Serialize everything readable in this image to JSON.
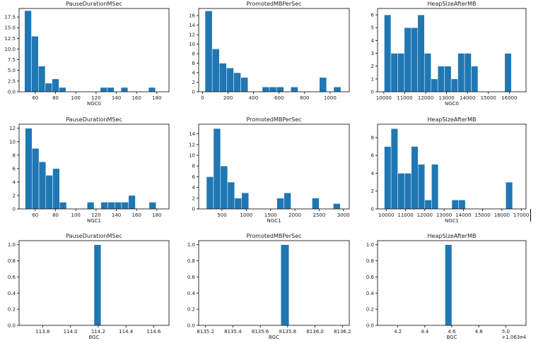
{
  "figure": {
    "bar_color": "#1f77b4",
    "edge_color": "#ffffff",
    "axis_color": "#000000"
  },
  "chart_data": [
    {
      "type": "bar",
      "title": "PauseDurationMSec",
      "xlabel": "NGC0",
      "xlim": [
        44,
        192
      ],
      "ylim": [
        0,
        19.5
      ],
      "xticks": [
        60,
        80,
        100,
        120,
        140,
        160,
        180
      ],
      "xtick_labels": [
        "60",
        "80",
        "100",
        "120",
        "140",
        "160",
        "180"
      ],
      "yticks": [
        0.0,
        2.5,
        5.0,
        7.5,
        10.0,
        12.5,
        15.0,
        17.5
      ],
      "ytick_labels": [
        "0.0",
        "2.5",
        "5.0",
        "7.5",
        "10.0",
        "12.5",
        "15.0",
        "17.5"
      ],
      "bin_edges": [
        49.4,
        56.2,
        63.0,
        69.8,
        76.6,
        83.4,
        90.2,
        97.0,
        103.8,
        110.6,
        117.4,
        124.2,
        131.0,
        137.8,
        144.6,
        151.4,
        158.2,
        165.0,
        171.8,
        178.6,
        185.4
      ],
      "values": [
        19,
        13,
        6,
        2,
        3,
        1,
        0,
        0,
        0,
        0,
        0,
        1,
        1,
        0,
        1,
        0,
        0,
        0,
        1,
        0
      ]
    },
    {
      "type": "bar",
      "title": "PromotedMBPerSec",
      "xlabel": "",
      "xlim": [
        -30,
        1150
      ],
      "ylim": [
        0,
        17.5
      ],
      "xticks": [
        0,
        200,
        400,
        600,
        800,
        1000
      ],
      "xtick_labels": [
        "0",
        "200",
        "400",
        "600",
        "800",
        "1000"
      ],
      "yticks": [
        0,
        2,
        4,
        6,
        8,
        10,
        12,
        14,
        16
      ],
      "ytick_labels": [
        "0",
        "2",
        "4",
        "6",
        "8",
        "10",
        "12",
        "14",
        "16"
      ],
      "bin_edges": [
        20,
        76,
        132,
        188,
        244,
        300,
        356,
        412,
        468,
        524,
        580,
        636,
        692,
        748,
        804,
        860,
        916,
        972,
        1028,
        1084,
        1140
      ],
      "values": [
        17,
        9,
        6,
        5,
        4,
        3,
        0,
        0,
        1,
        1,
        1,
        0,
        1,
        0,
        0,
        0,
        3,
        0,
        1,
        0
      ]
    },
    {
      "type": "bar",
      "title": "HeapSizeAfterMB",
      "xlabel": "NGC0",
      "xlim": [
        9700,
        16800
      ],
      "ylim": [
        0,
        6.5
      ],
      "xticks": [
        10000,
        11000,
        12000,
        13000,
        14000,
        15000,
        16000
      ],
      "xtick_labels": [
        "10000",
        "11000",
        "12000",
        "13000",
        "14000",
        "15000",
        "16000"
      ],
      "yticks": [
        0,
        1,
        2,
        3,
        4,
        5,
        6
      ],
      "ytick_labels": [
        "0",
        "1",
        "2",
        "3",
        "4",
        "5",
        "6"
      ],
      "bin_edges": [
        10020,
        10340,
        10660,
        10980,
        11300,
        11620,
        11940,
        12260,
        12580,
        12900,
        13220,
        13540,
        13860,
        14180,
        14500,
        14820,
        15140,
        15460,
        15780,
        16100,
        16420
      ],
      "values": [
        6,
        3,
        3,
        5,
        5,
        6,
        3,
        1,
        2,
        2,
        1,
        3,
        3,
        2,
        0,
        0,
        0,
        0,
        3,
        0
      ]
    },
    {
      "type": "bar",
      "title": "PauseDurationMSec",
      "xlabel": "NGC1",
      "xlim": [
        44,
        192
      ],
      "ylim": [
        0,
        12.6
      ],
      "xticks": [
        60,
        80,
        100,
        120,
        140,
        160,
        180
      ],
      "xtick_labels": [
        "60",
        "80",
        "100",
        "120",
        "140",
        "160",
        "180"
      ],
      "yticks": [
        0,
        2,
        4,
        6,
        8,
        10,
        12
      ],
      "ytick_labels": [
        "0",
        "2",
        "4",
        "6",
        "8",
        "10",
        "12"
      ],
      "bin_edges": [
        50.0,
        56.8,
        63.6,
        70.4,
        77.2,
        84.0,
        90.8,
        97.6,
        104.4,
        111.2,
        118.0,
        124.8,
        131.6,
        138.4,
        145.2,
        152.0,
        158.8,
        165.6,
        172.4,
        179.2,
        186.0
      ],
      "values": [
        12,
        9,
        7,
        5,
        6,
        1,
        0,
        0,
        0,
        1,
        0,
        1,
        1,
        1,
        1,
        2,
        0,
        0,
        1,
        0
      ]
    },
    {
      "type": "bar",
      "title": "PromotedMBPerSec",
      "xlabel": "NGC1",
      "xlim": [
        20,
        3120
      ],
      "ylim": [
        0,
        15.8
      ],
      "xticks": [
        500,
        1000,
        1500,
        2000,
        2500,
        3000
      ],
      "xtick_labels": [
        "500",
        "1000",
        "1500",
        "2000",
        "2500",
        "3000"
      ],
      "yticks": [
        0,
        2,
        4,
        6,
        8,
        10,
        12,
        14
      ],
      "ytick_labels": [
        "0",
        "2",
        "4",
        "6",
        "8",
        "10",
        "12",
        "14"
      ],
      "bin_edges": [
        180,
        325,
        470,
        615,
        760,
        905,
        1050,
        1195,
        1340,
        1485,
        1630,
        1775,
        1920,
        2065,
        2210,
        2355,
        2500,
        2645,
        2790,
        2935,
        3080
      ],
      "values": [
        6,
        15,
        8,
        5,
        2,
        3,
        0,
        0,
        0,
        0,
        2,
        3,
        0,
        0,
        0,
        2,
        0,
        0,
        1,
        0
      ]
    },
    {
      "type": "bar",
      "title": "HeapSizeAfterMB",
      "xlabel": "NGC1",
      "xlim": [
        9550,
        17250
      ],
      "ylim": [
        0,
        9.5
      ],
      "xticks": [
        10000,
        11000,
        12000,
        13000,
        14000,
        15000,
        16000,
        17000
      ],
      "xtick_labels": [
        "10000",
        "11000",
        "12000",
        "13000",
        "14000",
        "15000",
        "16000",
        "17000"
      ],
      "yticks": [
        0,
        2,
        4,
        6,
        8
      ],
      "ytick_labels": [
        "0",
        "2",
        "4",
        "6",
        "8"
      ],
      "bin_edges": [
        9900,
        10250,
        10600,
        10950,
        11300,
        11650,
        12000,
        12350,
        12700,
        13050,
        13400,
        13750,
        14100,
        14450,
        14800,
        15150,
        15500,
        15850,
        16200,
        16550,
        16900
      ],
      "values": [
        7,
        9,
        4,
        4,
        7,
        5,
        1,
        5,
        0,
        0,
        1,
        1,
        0,
        0,
        0,
        0,
        0,
        0,
        3,
        0
      ]
    },
    {
      "type": "bar",
      "title": "PauseDurationMSec",
      "xlabel": "BGC",
      "xlim": [
        113.63,
        114.71
      ],
      "ylim": [
        0,
        1.05
      ],
      "xticks": [
        113.8,
        114.0,
        114.2,
        114.4,
        114.6
      ],
      "xtick_labels": [
        "113.8",
        "114.0",
        "114.2",
        "114.4",
        "114.6"
      ],
      "yticks": [
        0.0,
        0.2,
        0.4,
        0.6,
        0.8,
        1.0
      ],
      "ytick_labels": [
        "0.0",
        "0.2",
        "0.4",
        "0.6",
        "0.8",
        "1.0"
      ],
      "bin_edges": [
        114.17,
        114.22
      ],
      "values": [
        1
      ]
    },
    {
      "type": "bar",
      "title": "PromotedMBPerSec",
      "xlabel": "BGC",
      "xlim": [
        8135.15,
        8136.25
      ],
      "ylim": [
        0,
        1.05
      ],
      "xticks": [
        8135.2,
        8135.4,
        8135.6,
        8135.8,
        8136.0,
        8136.2
      ],
      "xtick_labels": [
        "8135.2",
        "8135.4",
        "8135.6",
        "8135.8",
        "8136.0",
        "8136.2"
      ],
      "yticks": [
        0.0,
        0.2,
        0.4,
        0.6,
        0.8,
        1.0
      ],
      "ytick_labels": [
        "0.0",
        "0.2",
        "0.4",
        "0.6",
        "0.8",
        "1.0"
      ],
      "bin_edges": [
        8135.75,
        8135.81
      ],
      "values": [
        1
      ]
    },
    {
      "type": "bar",
      "title": "HeapSizeAfterMB",
      "xlabel": "BGC",
      "xlim": [
        4.05,
        5.15
      ],
      "ylim": [
        0,
        1.05
      ],
      "xticks": [
        4.2,
        4.4,
        4.6,
        4.8,
        5.0
      ],
      "xtick_labels": [
        "4.2",
        "4.4",
        "4.6",
        "4.8",
        "5.0"
      ],
      "yticks": [
        0.0,
        0.2,
        0.4,
        0.6,
        0.8,
        1.0
      ],
      "ytick_labels": [
        "0.0",
        "0.2",
        "0.4",
        "0.6",
        "0.8",
        "1.0"
      ],
      "offset_label": "+1.063e4",
      "bin_edges": [
        4.55,
        4.6
      ],
      "values": [
        1
      ]
    }
  ]
}
